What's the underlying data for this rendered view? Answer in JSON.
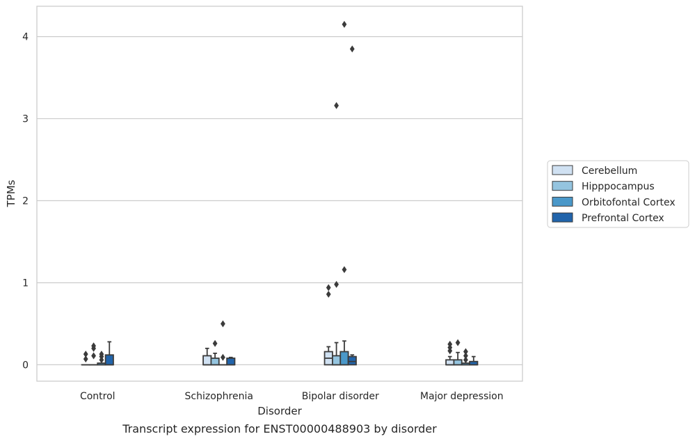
{
  "chart_data": {
    "type": "box",
    "caption": "Transcript expression for ENST00000488903 by disorder",
    "xlabel": "Disorder",
    "ylabel": "TPMs",
    "ylim": [
      -0.2,
      4.37
    ],
    "yticks": [
      0,
      1,
      2,
      3,
      4
    ],
    "grid": "horizontal",
    "legend_placement": "right",
    "categories": [
      "Control",
      "Schizophrenia",
      "Bipolar disorder",
      "Major depression"
    ],
    "series": [
      {
        "name": "Cerebellum",
        "color": "#d0e1f2",
        "boxes": [
          {
            "q1": 0,
            "median": 0,
            "q3": 0,
            "whisker_low": 0,
            "whisker_high": 0,
            "outliers": [
              0.07,
              0.13
            ]
          },
          {
            "q1": 0,
            "median": 0,
            "q3": 0.11,
            "whisker_low": 0,
            "whisker_high": 0.2,
            "outliers": []
          },
          {
            "q1": 0,
            "median": 0.08,
            "q3": 0.16,
            "whisker_low": 0,
            "whisker_high": 0.22,
            "outliers": [
              0.86,
              0.94
            ]
          },
          {
            "q1": 0,
            "median": 0,
            "q3": 0.06,
            "whisker_low": 0,
            "whisker_high": 0.1,
            "outliers": [
              0.17,
              0.21,
              0.25
            ]
          }
        ]
      },
      {
        "name": "Hipppocampus",
        "color": "#94c4df",
        "boxes": [
          {
            "q1": 0,
            "median": 0,
            "q3": 0,
            "whisker_low": 0,
            "whisker_high": 0,
            "outliers": [
              0.11,
              0.2,
              0.23
            ]
          },
          {
            "q1": 0,
            "median": 0,
            "q3": 0.08,
            "whisker_low": 0,
            "whisker_high": 0.14,
            "outliers": [
              0.26
            ]
          },
          {
            "q1": 0,
            "median": 0,
            "q3": 0.11,
            "whisker_low": 0,
            "whisker_high": 0.27,
            "outliers": [
              0.98,
              3.16
            ]
          },
          {
            "q1": 0,
            "median": 0,
            "q3": 0.06,
            "whisker_low": 0,
            "whisker_high": 0.15,
            "outliers": [
              0.27
            ]
          }
        ]
      },
      {
        "name": "Orbitofontal Cortex",
        "color": "#4a98c9",
        "boxes": [
          {
            "q1": 0,
            "median": 0,
            "q3": 0.02,
            "whisker_low": 0,
            "whisker_high": 0.02,
            "outliers": [
              0.06,
              0.1,
              0.13
            ]
          },
          {
            "q1": 0,
            "median": 0,
            "q3": 0,
            "whisker_low": 0,
            "whisker_high": 0,
            "outliers": [
              0.09,
              0.5
            ]
          },
          {
            "q1": 0,
            "median": 0,
            "q3": 0.16,
            "whisker_low": 0,
            "whisker_high": 0.29,
            "outliers": [
              1.16,
              4.15
            ]
          },
          {
            "q1": 0,
            "median": 0,
            "q3": 0.02,
            "whisker_low": 0,
            "whisker_high": 0.02,
            "outliers": [
              0.06,
              0.11,
              0.16
            ]
          }
        ]
      },
      {
        "name": "Prefrontal Cortex",
        "color": "#2164ab",
        "boxes": [
          {
            "q1": 0,
            "median": 0,
            "q3": 0.12,
            "whisker_low": 0,
            "whisker_high": 0.28,
            "outliers": []
          },
          {
            "q1": 0,
            "median": 0,
            "q3": 0.08,
            "whisker_low": 0,
            "whisker_high": 0.09,
            "outliers": []
          },
          {
            "q1": 0,
            "median": 0.04,
            "q3": 0.1,
            "whisker_low": 0,
            "whisker_high": 0.12,
            "outliers": [
              3.85
            ]
          },
          {
            "q1": 0,
            "median": 0,
            "q3": 0.04,
            "whisker_low": 0,
            "whisker_high": 0.1,
            "outliers": []
          }
        ]
      }
    ]
  }
}
